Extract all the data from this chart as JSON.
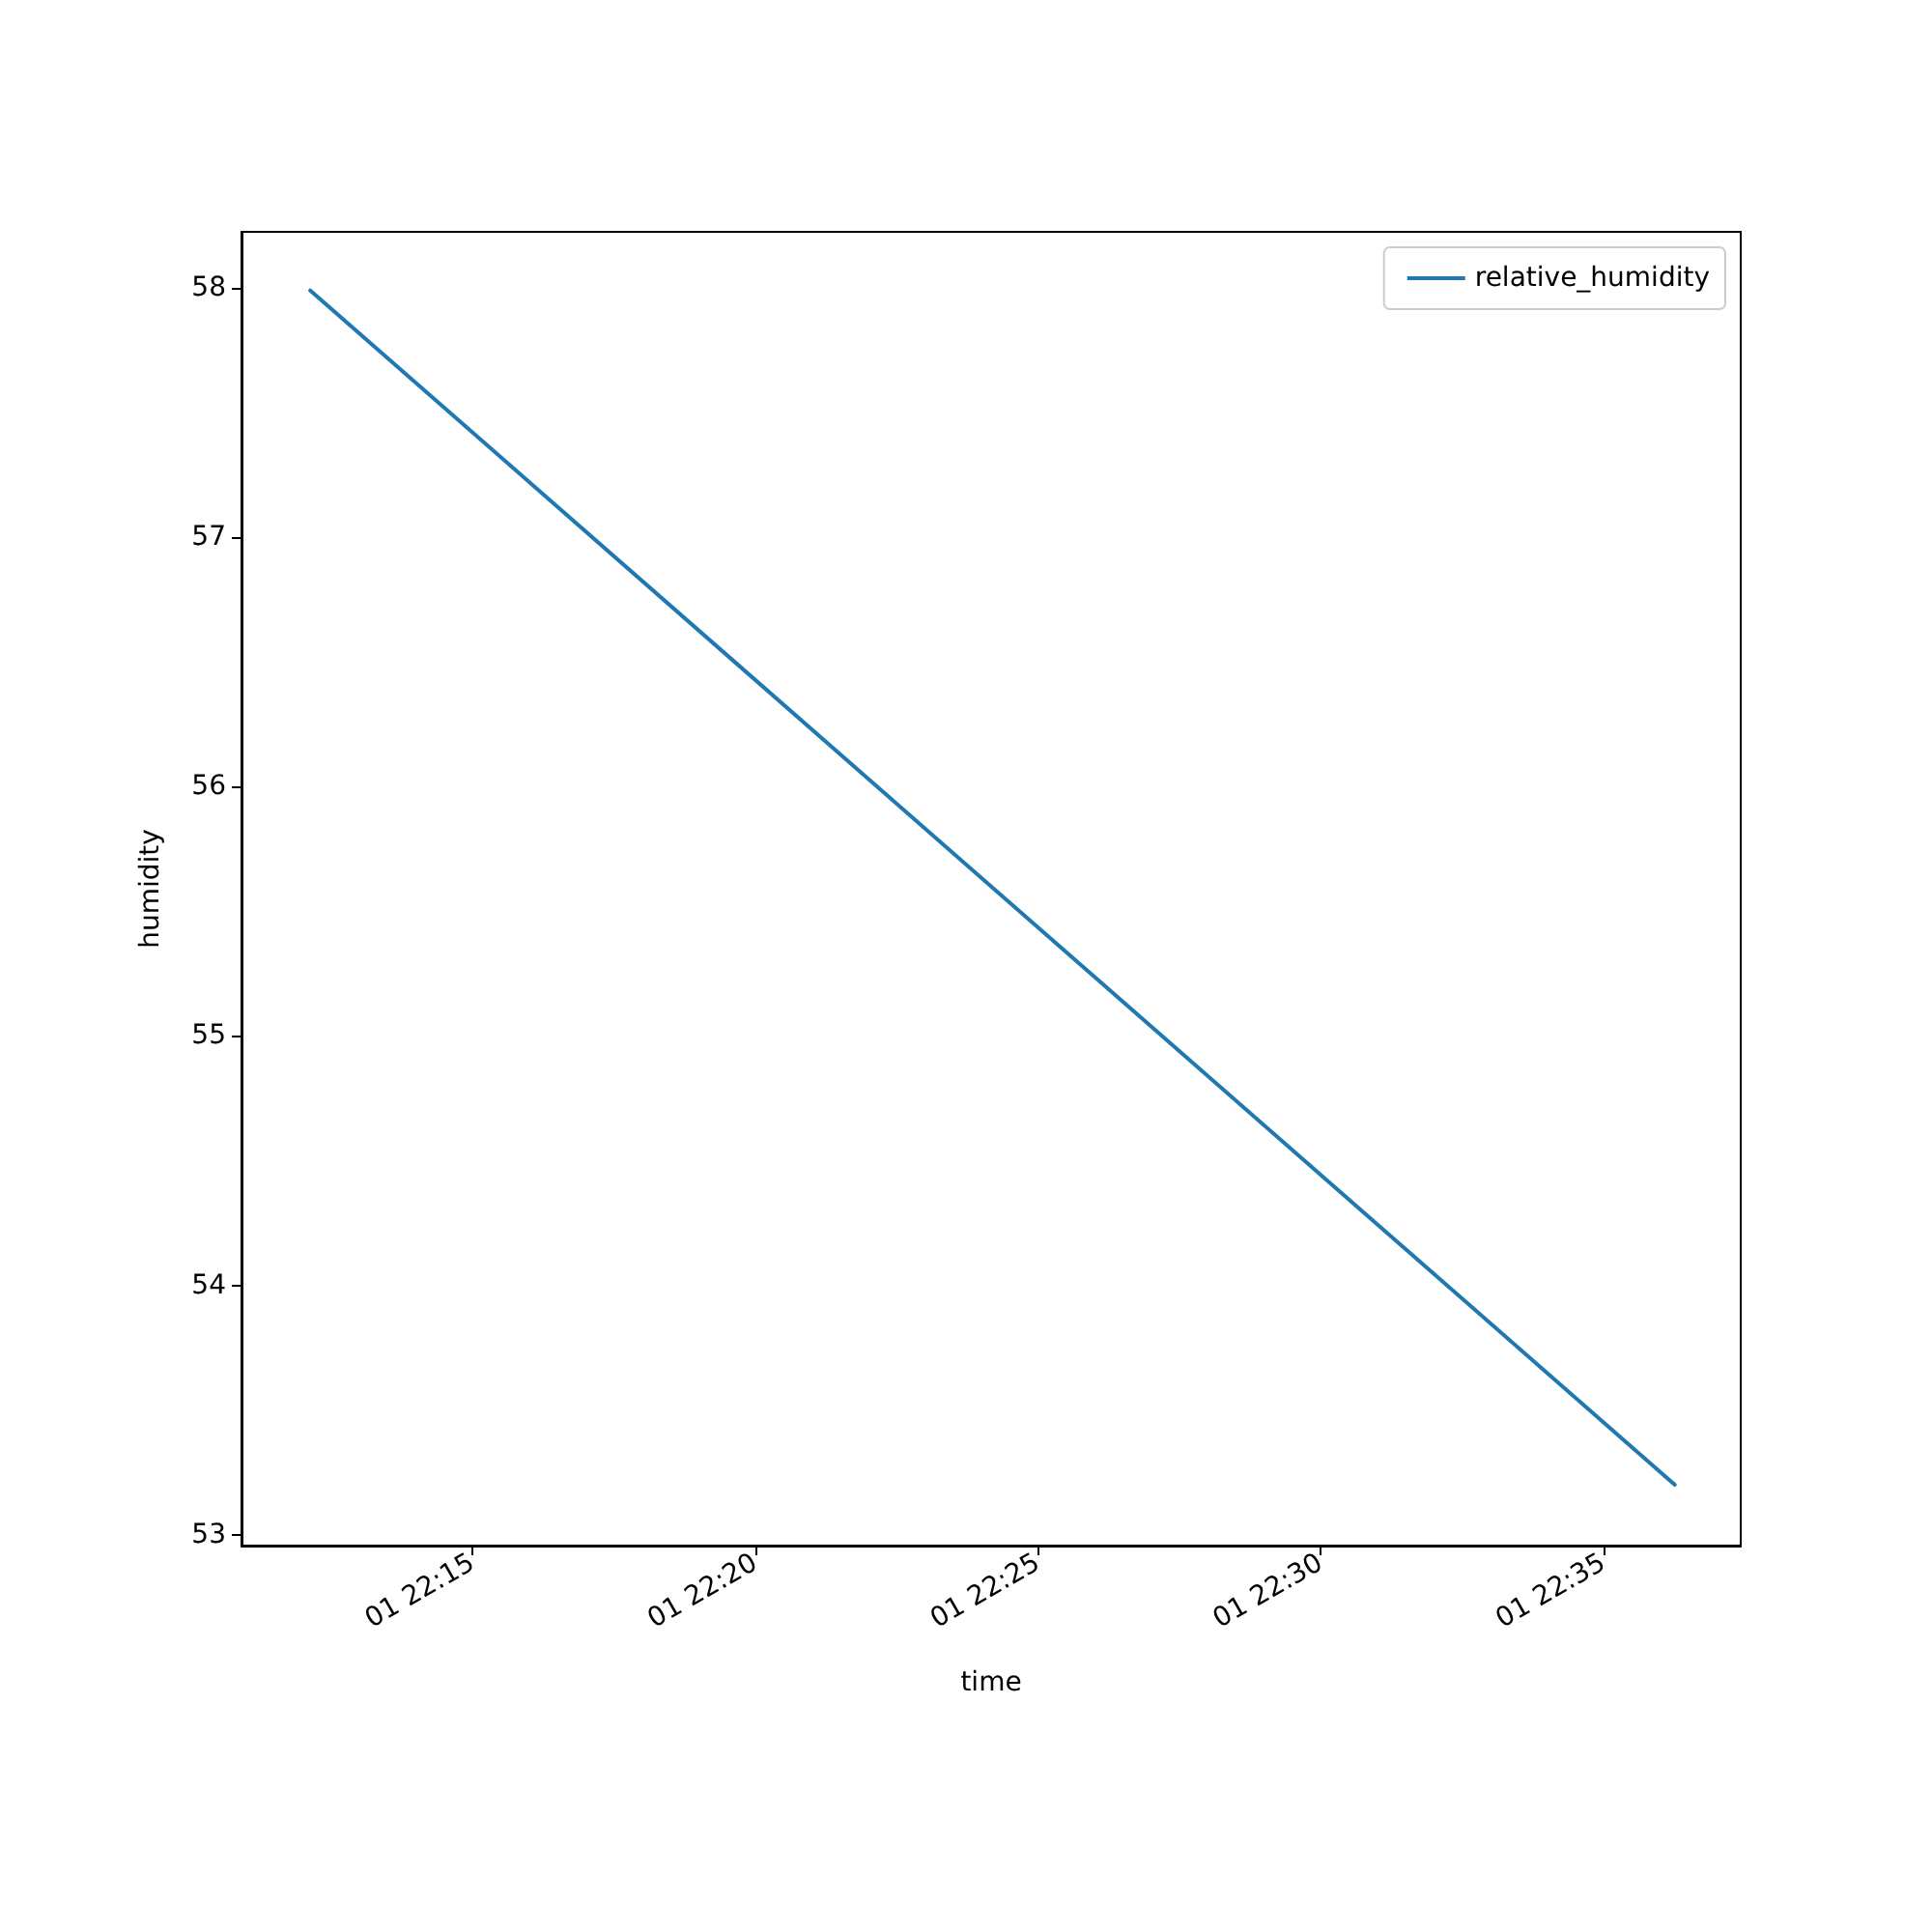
{
  "chart_data": {
    "type": "line",
    "xlabel": "time",
    "ylabel": "humidity",
    "x": [
      "--01-01T22:12:08",
      "--01-01T22:36:16"
    ],
    "series": [
      {
        "name": "relative_humidity",
        "color": "#1f77b4",
        "values": [
          57.99,
          53.2
        ]
      }
    ],
    "xlim": [
      "--01-01T22:10:55",
      "--01-01T22:37:26"
    ],
    "xticks": [
      {
        "value": "--01-01T22:15",
        "label": "01 22:15"
      },
      {
        "value": "--01-01T22:20",
        "label": "01 22:20"
      },
      {
        "value": "--01-01T22:25",
        "label": "01 22:25"
      },
      {
        "value": "--01-01T22:30",
        "label": "01 22:30"
      },
      {
        "value": "--01-01T22:35",
        "label": "01 22:35"
      }
    ],
    "ylim": [
      52.956,
      58.225
    ],
    "yticks": [
      53,
      54,
      55,
      56,
      57,
      58
    ],
    "legend": "top right",
    "marker": "none",
    "line_style": "solid"
  }
}
